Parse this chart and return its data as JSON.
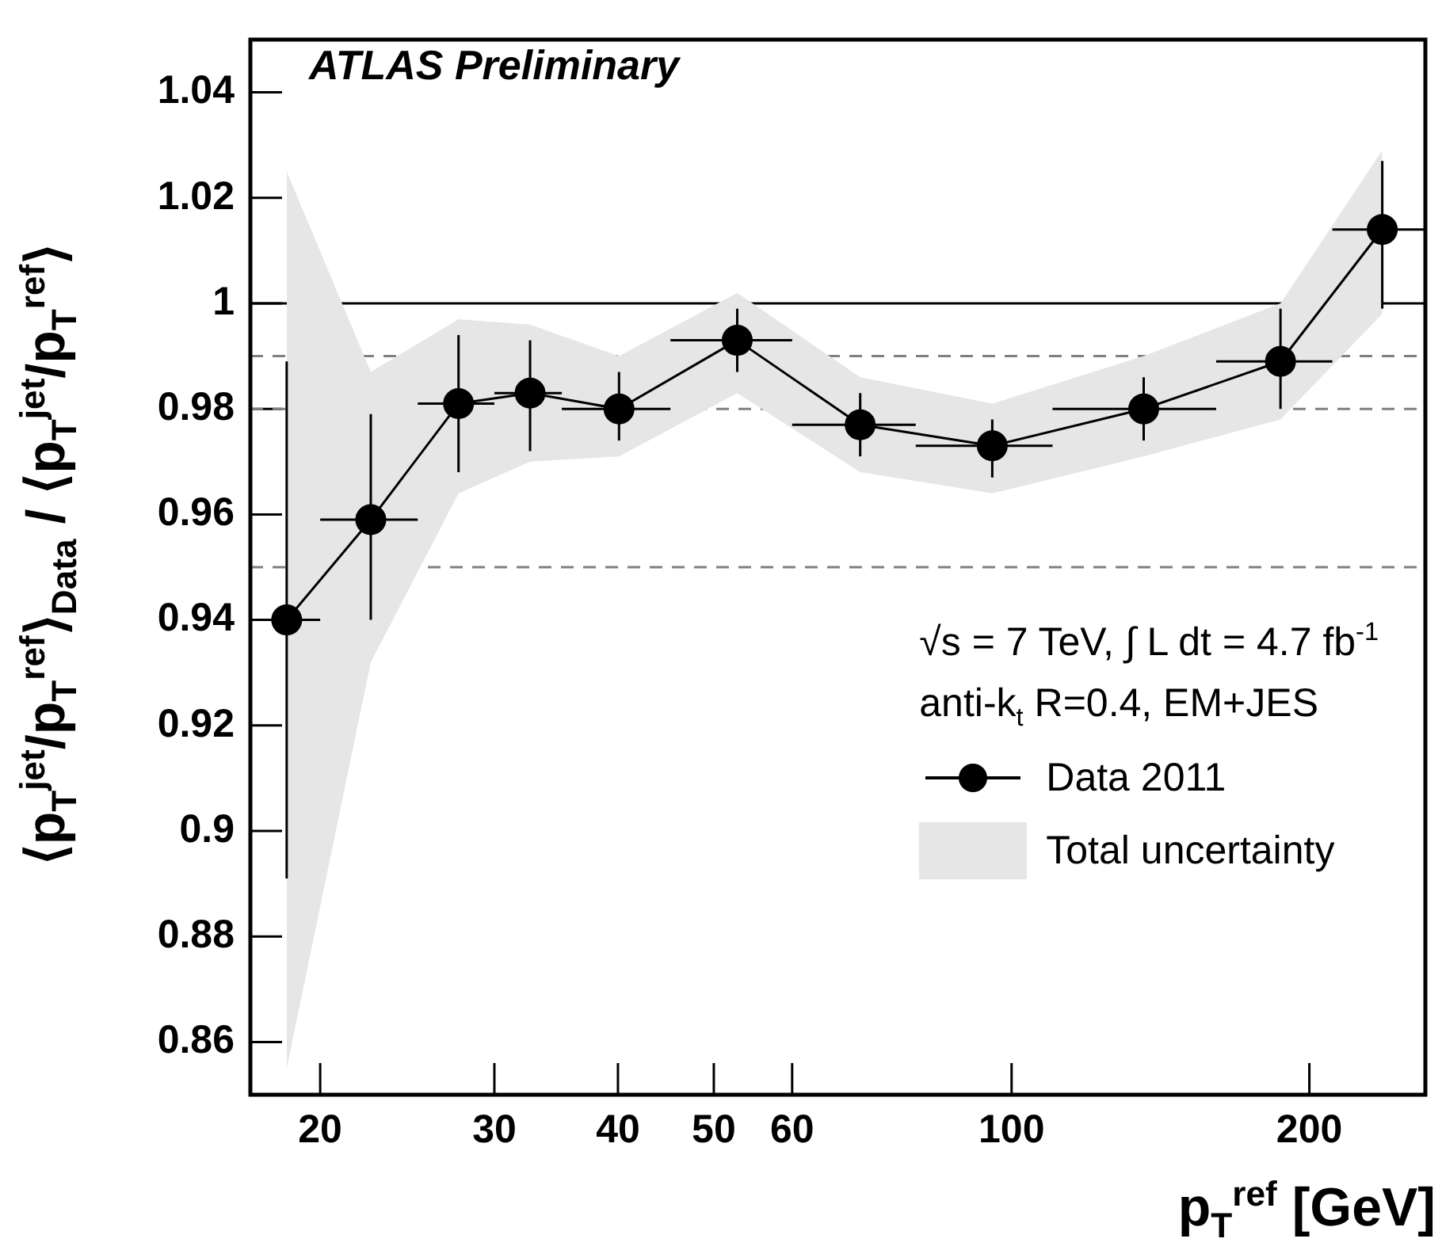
{
  "chart_data": {
    "type": "line",
    "xlabel": "p$_{T}$$^{ref}$ [GeV]",
    "ylabel": "⟨p$_{T}$$^{jet}$/p$_{T}$$^{ref}$⟩$_{Data}$ / ⟨p$_{T}$$^{jet}$/p$_{T}$$^{ref}$⟩",
    "annotations": [
      "ATLAS Preliminary",
      "√s = 7 TeV,  ∫ L dt = 4.7 fb$^{-1}$",
      "anti-k$_{t}$ R=0.4, EM+JES",
      "Total uncertainty"
    ],
    "log": "x",
    "xlim": [
      17,
      262
    ],
    "ylim": [
      0.85,
      1.05
    ],
    "xticks": [
      20,
      30,
      40,
      50,
      60,
      100,
      200
    ],
    "yticks": [
      0.86,
      0.88,
      0.9,
      0.92,
      0.94,
      0.96,
      0.98,
      1,
      1.02,
      1.04
    ],
    "grid": false,
    "legend": "bottom right",
    "marker": "circle",
    "line_style": "solid",
    "ref_lines": [
      {
        "axis": "y",
        "value": 1,
        "color": "#000000",
        "line_style": "solid"
      },
      {
        "axis": "y",
        "value": 0.99,
        "color": "#808080",
        "line_style": "dashed"
      },
      {
        "axis": "y",
        "value": 0.98,
        "color": "#808080",
        "line_style": "dashed"
      },
      {
        "axis": "y",
        "value": 0.95,
        "color": "#808080",
        "line_style": "dashed"
      }
    ],
    "series": [
      {
        "name": "Data 2011",
        "color": "#000000",
        "x": [
          18.5,
          22.5,
          27.6,
          32.6,
          40.1,
          52.8,
          70.3,
          95.6,
          136,
          187,
          237
        ],
        "values": [
          0.94,
          0.959,
          0.981,
          0.983,
          0.98,
          0.993,
          0.977,
          0.973,
          0.98,
          0.989,
          1.014
        ],
        "lower": [
          0.855,
          0.932,
          0.964,
          0.97,
          0.971,
          0.983,
          0.968,
          0.964,
          0.971,
          0.978,
          0.998
        ],
        "upper": [
          1.025,
          0.987,
          0.997,
          0.996,
          0.99,
          1.002,
          0.986,
          0.981,
          0.99,
          1.0,
          1.029
        ],
        "errors": [
          [
            0.891,
            0.989
          ],
          [
            0.94,
            0.979
          ],
          [
            0.968,
            0.994
          ],
          [
            0.972,
            0.993
          ],
          [
            0.974,
            0.987
          ],
          [
            0.987,
            0.999
          ],
          [
            0.971,
            0.983
          ],
          [
            0.967,
            0.978
          ],
          [
            0.974,
            0.986
          ],
          [
            0.98,
            0.999
          ],
          [
            0.999,
            1.027
          ]
        ],
        "xerrors": [
          [
            17.2,
            20
          ],
          [
            20,
            25.1
          ],
          [
            25.1,
            30
          ],
          [
            30,
            35.1
          ],
          [
            35.1,
            45.2
          ],
          [
            45.2,
            60
          ],
          [
            60,
            80
          ],
          [
            80,
            110
          ],
          [
            110,
            161
          ],
          [
            161,
            211
          ],
          [
            211,
            262
          ]
        ]
      }
    ]
  }
}
